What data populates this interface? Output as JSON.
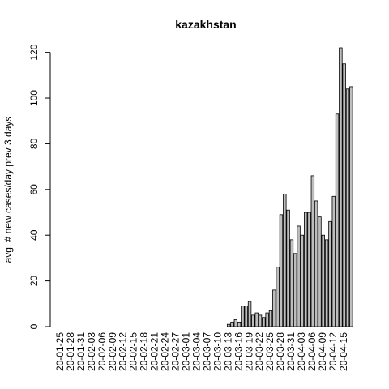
{
  "chart_data": {
    "type": "bar",
    "title": "kazakhstan",
    "ylabel": "avg. # new cases/day prev  3  days",
    "categories": [
      "20-01-25",
      null,
      null,
      "20-01-28",
      null,
      null,
      "20-01-31",
      null,
      null,
      "20-02-03",
      null,
      null,
      "20-02-06",
      null,
      null,
      "20-02-09",
      null,
      null,
      "20-02-12",
      null,
      null,
      "20-02-15",
      null,
      null,
      "20-02-18",
      null,
      null,
      "20-02-21",
      null,
      null,
      "20-02-24",
      null,
      null,
      "20-02-27",
      null,
      null,
      "20-03-01",
      null,
      null,
      "20-03-04",
      null,
      null,
      "20-03-07",
      null,
      null,
      "20-03-10",
      null,
      null,
      "20-03-13",
      null,
      null,
      "20-03-16",
      null,
      null,
      "20-03-19",
      null,
      null,
      "20-03-22",
      null,
      null,
      "20-03-25",
      null,
      null,
      "20-03-28",
      null,
      null,
      "20-03-31",
      null,
      null,
      "20-04-03",
      null,
      null,
      "20-04-06",
      null,
      null,
      "20-04-09",
      null,
      null,
      "20-04-12",
      null,
      null,
      "20-04-15",
      null,
      null
    ],
    "values": [
      0,
      0,
      0,
      0,
      0,
      0,
      0,
      0,
      0,
      0,
      0,
      0,
      0,
      0,
      0,
      0,
      0,
      0,
      0,
      0,
      0,
      0,
      0,
      0,
      0,
      0,
      0,
      0,
      0,
      0,
      0,
      0,
      0,
      0,
      0,
      0,
      0,
      0,
      0,
      0,
      0,
      0,
      0,
      0,
      0,
      0,
      0,
      0,
      1,
      2,
      3,
      2,
      9,
      9,
      11,
      5,
      6,
      5,
      4,
      6,
      7,
      16,
      26,
      49,
      58,
      51,
      38,
      32,
      44,
      40,
      50,
      50,
      66,
      55,
      48,
      40,
      38,
      46,
      57,
      93,
      122,
      115,
      104,
      105
    ],
    "color": "#bebebe",
    "ylim": [
      0,
      122
    ],
    "yticks": [
      0,
      20,
      40,
      60,
      80,
      100,
      120
    ]
  }
}
